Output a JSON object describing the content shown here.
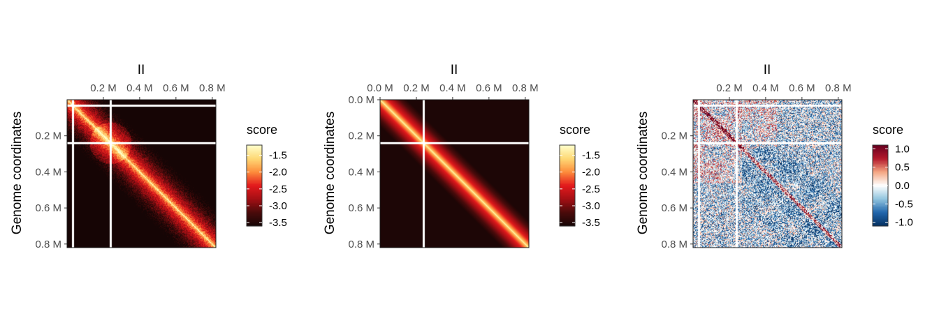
{
  "chart_data": [
    {
      "type": "heatmap",
      "title": "II",
      "xlabel": "",
      "ylabel": "Genome coordinates",
      "xlim": [
        0,
        0.82
      ],
      "ylim": [
        0,
        0.82
      ],
      "x_ticks": [
        {
          "value": 0.2,
          "label": "0.2 M"
        },
        {
          "value": 0.4,
          "label": "0.4 M"
        },
        {
          "value": 0.6,
          "label": "0.6 M"
        },
        {
          "value": 0.8,
          "label": "0.8 M"
        }
      ],
      "y_ticks": [
        {
          "value": 0.2,
          "label": "0.2 M"
        },
        {
          "value": 0.4,
          "label": "0.4 M"
        },
        {
          "value": 0.6,
          "label": "0.6 M"
        },
        {
          "value": 0.8,
          "label": "0.8 M"
        }
      ],
      "legend": {
        "title": "score",
        "range": [
          -3.6,
          -1.2
        ],
        "ticks": [
          {
            "value": -1.5,
            "label": "-1.5"
          },
          {
            "value": -2.0,
            "label": "-2.0"
          },
          {
            "value": -2.5,
            "label": "-2.5"
          },
          {
            "value": -3.0,
            "label": "-3.0"
          },
          {
            "value": -3.5,
            "label": "-3.5"
          }
        ],
        "colors": [
          "#ffffcc",
          "#fed976",
          "#fd8d3c",
          "#e31a1c",
          "#a50f15",
          "#4a0b0b",
          "#160505"
        ]
      },
      "pattern": "observed",
      "white_lines_at": [
        0.03,
        0.24
      ]
    },
    {
      "type": "heatmap",
      "title": "II",
      "xlabel": "",
      "ylabel": "Genome coordinates",
      "xlim": [
        0,
        0.82
      ],
      "ylim": [
        0,
        0.82
      ],
      "x_ticks": [
        {
          "value": 0.0,
          "label": "0.0 M"
        },
        {
          "value": 0.2,
          "label": "0.2 M"
        },
        {
          "value": 0.4,
          "label": "0.4 M"
        },
        {
          "value": 0.6,
          "label": "0.6 M"
        },
        {
          "value": 0.8,
          "label": "0.8 M"
        }
      ],
      "y_ticks": [
        {
          "value": 0.0,
          "label": "0.0 M"
        },
        {
          "value": 0.2,
          "label": "0.2 M"
        },
        {
          "value": 0.4,
          "label": "0.4 M"
        },
        {
          "value": 0.6,
          "label": "0.6 M"
        },
        {
          "value": 0.8,
          "label": "0.8 M"
        }
      ],
      "legend": {
        "title": "score",
        "range": [
          -3.6,
          -1.2
        ],
        "ticks": [
          {
            "value": -1.5,
            "label": "-1.5"
          },
          {
            "value": -2.0,
            "label": "-2.0"
          },
          {
            "value": -2.5,
            "label": "-2.5"
          },
          {
            "value": -3.0,
            "label": "-3.0"
          },
          {
            "value": -3.5,
            "label": "-3.5"
          }
        ],
        "colors": [
          "#ffffcc",
          "#fed976",
          "#fd8d3c",
          "#e31a1c",
          "#a50f15",
          "#4a0b0b",
          "#160505"
        ]
      },
      "pattern": "expected",
      "white_lines_at": [
        0.24
      ]
    },
    {
      "type": "heatmap",
      "title": "II",
      "xlabel": "",
      "ylabel": "Genome coordinates",
      "xlim": [
        0,
        0.82
      ],
      "ylim": [
        0,
        0.82
      ],
      "x_ticks": [
        {
          "value": 0.2,
          "label": "0.2 M"
        },
        {
          "value": 0.4,
          "label": "0.4 M"
        },
        {
          "value": 0.6,
          "label": "0.6 M"
        },
        {
          "value": 0.8,
          "label": "0.8 M"
        }
      ],
      "y_ticks": [
        {
          "value": 0.2,
          "label": "0.2 M"
        },
        {
          "value": 0.4,
          "label": "0.4 M"
        },
        {
          "value": 0.6,
          "label": "0.6 M"
        },
        {
          "value": 0.8,
          "label": "0.8 M"
        }
      ],
      "legend": {
        "title": "score",
        "range": [
          -1.1,
          1.1
        ],
        "ticks": [
          {
            "value": 1.0,
            "label": "1.0"
          },
          {
            "value": 0.5,
            "label": "0.5"
          },
          {
            "value": 0.0,
            "label": "0.0"
          },
          {
            "value": -0.5,
            "label": "-0.5"
          },
          {
            "value": -1.0,
            "label": "-1.0"
          }
        ],
        "colors": [
          "#053061",
          "#2166ac",
          "#92c5de",
          "#ffffff",
          "#f4a582",
          "#b2182b",
          "#67001f"
        ]
      },
      "pattern": "ratio",
      "white_lines_at": [
        0.03,
        0.24
      ]
    }
  ]
}
